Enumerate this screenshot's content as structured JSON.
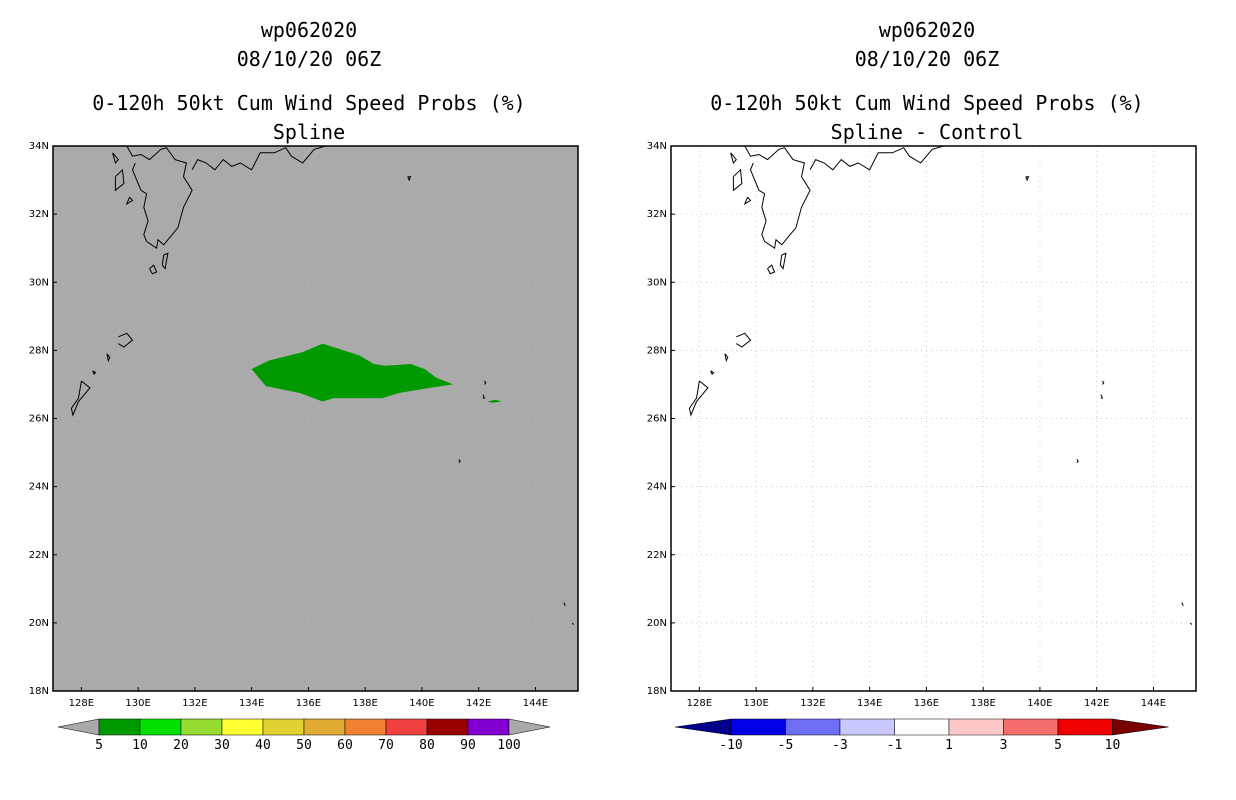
{
  "left_panel": {
    "storm_id": "wp062020",
    "date": "08/10/20 06Z",
    "product": "0-120h 50kt Cum Wind Speed Probs (%)",
    "subtitle": "Spline",
    "background": "#aaaaaa",
    "shape_color": "#009900"
  },
  "right_panel": {
    "storm_id": "wp062020",
    "date": "08/10/20 06Z",
    "product": "0-120h 50kt Cum Wind Speed Probs (%)",
    "subtitle": "Spline - Control",
    "background": "#ffffff"
  },
  "map": {
    "lon_range": [
      127,
      145.5
    ],
    "lat_range": [
      18,
      34
    ],
    "lon_ticks": [
      "128E",
      "130E",
      "132E",
      "134E",
      "136E",
      "138E",
      "140E",
      "142E",
      "144E"
    ],
    "lat_ticks": [
      "34N",
      "32N",
      "30N",
      "28N",
      "26N",
      "24N",
      "22N",
      "20N",
      "18N"
    ]
  },
  "chart_data": [
    {
      "type": "heatmap",
      "title": "0-120h 50kt Cum Wind Speed Probs (%)",
      "subtitle": "Spline",
      "region": {
        "lon": [
          127,
          145.5
        ],
        "lat": [
          18,
          34
        ]
      },
      "filled_area": {
        "category": "5-10",
        "color": "#009900",
        "polygon_lonlat": [
          [
            134.0,
            27.45
          ],
          [
            134.6,
            27.7
          ],
          [
            135.8,
            27.95
          ],
          [
            136.5,
            28.2
          ],
          [
            137.8,
            27.85
          ],
          [
            138.3,
            27.6
          ],
          [
            138.7,
            27.55
          ],
          [
            139.6,
            27.6
          ],
          [
            140.1,
            27.45
          ],
          [
            140.5,
            27.2
          ],
          [
            141.1,
            27.0
          ],
          [
            140.3,
            26.9
          ],
          [
            139.2,
            26.75
          ],
          [
            138.6,
            26.6
          ],
          [
            137.8,
            26.6
          ],
          [
            136.9,
            26.6
          ],
          [
            136.5,
            26.5
          ],
          [
            135.7,
            26.75
          ],
          [
            134.5,
            26.95
          ]
        ],
        "secondary_polygon_lonlat": [
          [
            142.3,
            26.5
          ],
          [
            142.6,
            26.55
          ],
          [
            142.8,
            26.5
          ],
          [
            142.5,
            26.46
          ]
        ]
      },
      "colorbar": {
        "labels": [
          "5",
          "10",
          "20",
          "30",
          "40",
          "50",
          "60",
          "70",
          "80",
          "90",
          "100"
        ],
        "colors": [
          "#009a00",
          "#00e100",
          "#96dc32",
          "#ffff32",
          "#e1d232",
          "#e1aa32",
          "#f08232",
          "#f04040",
          "#9b0000",
          "#8200d2"
        ],
        "under_color": "#aaaaaa",
        "over_color": "#aaaaaa"
      }
    },
    {
      "type": "heatmap",
      "title": "0-120h 50kt Cum Wind Speed Probs (%)",
      "subtitle": "Spline - Control",
      "region": {
        "lon": [
          127,
          145.5
        ],
        "lat": [
          18,
          34
        ]
      },
      "colorbar": {
        "labels": [
          "-10",
          "-5",
          "-3",
          "-1",
          "1",
          "3",
          "5",
          "10"
        ],
        "colors": [
          "#0000e6",
          "#6e6ef5",
          "#c8c8ff",
          "#ffffff",
          "#ffc8c8",
          "#f56e6e",
          "#f00000"
        ],
        "under_color": "#00008c",
        "over_color": "#780000"
      }
    }
  ]
}
